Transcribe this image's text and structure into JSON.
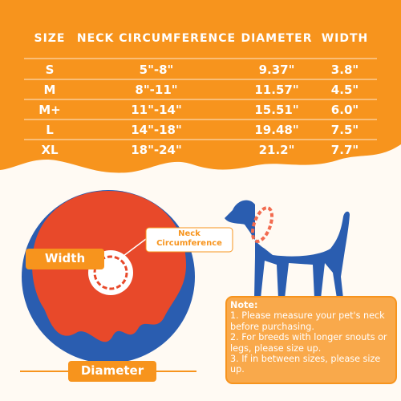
{
  "table": {
    "header": [
      "SIZE",
      "NECK CIRCUMFERENCE",
      "DIAMETER",
      "WIDTH"
    ],
    "rows": [
      [
        "S",
        "5\"-8\"",
        "9.37\"",
        "3.8\""
      ],
      [
        "M",
        "8\"-11\"",
        "11.57\"",
        "4.5\""
      ],
      [
        "M+",
        "11\"-14\"",
        "15.51\"",
        "6.0\""
      ],
      [
        "L",
        "14\"-18\"",
        "19.48\"",
        "7.5\""
      ],
      [
        "XL",
        "18\"-24\"",
        "21.2\"",
        "7.7\""
      ]
    ]
  },
  "labels": {
    "width": "Width",
    "neck": "Neck Circumference",
    "diameter": "Diameter"
  },
  "note": {
    "title": "Note:",
    "items": [
      "1. Please measure your pet's neck before purchasing.",
      "2. For breeds with longer snouts or legs, please size up.",
      "3. If in between sizes, please size up."
    ]
  }
}
